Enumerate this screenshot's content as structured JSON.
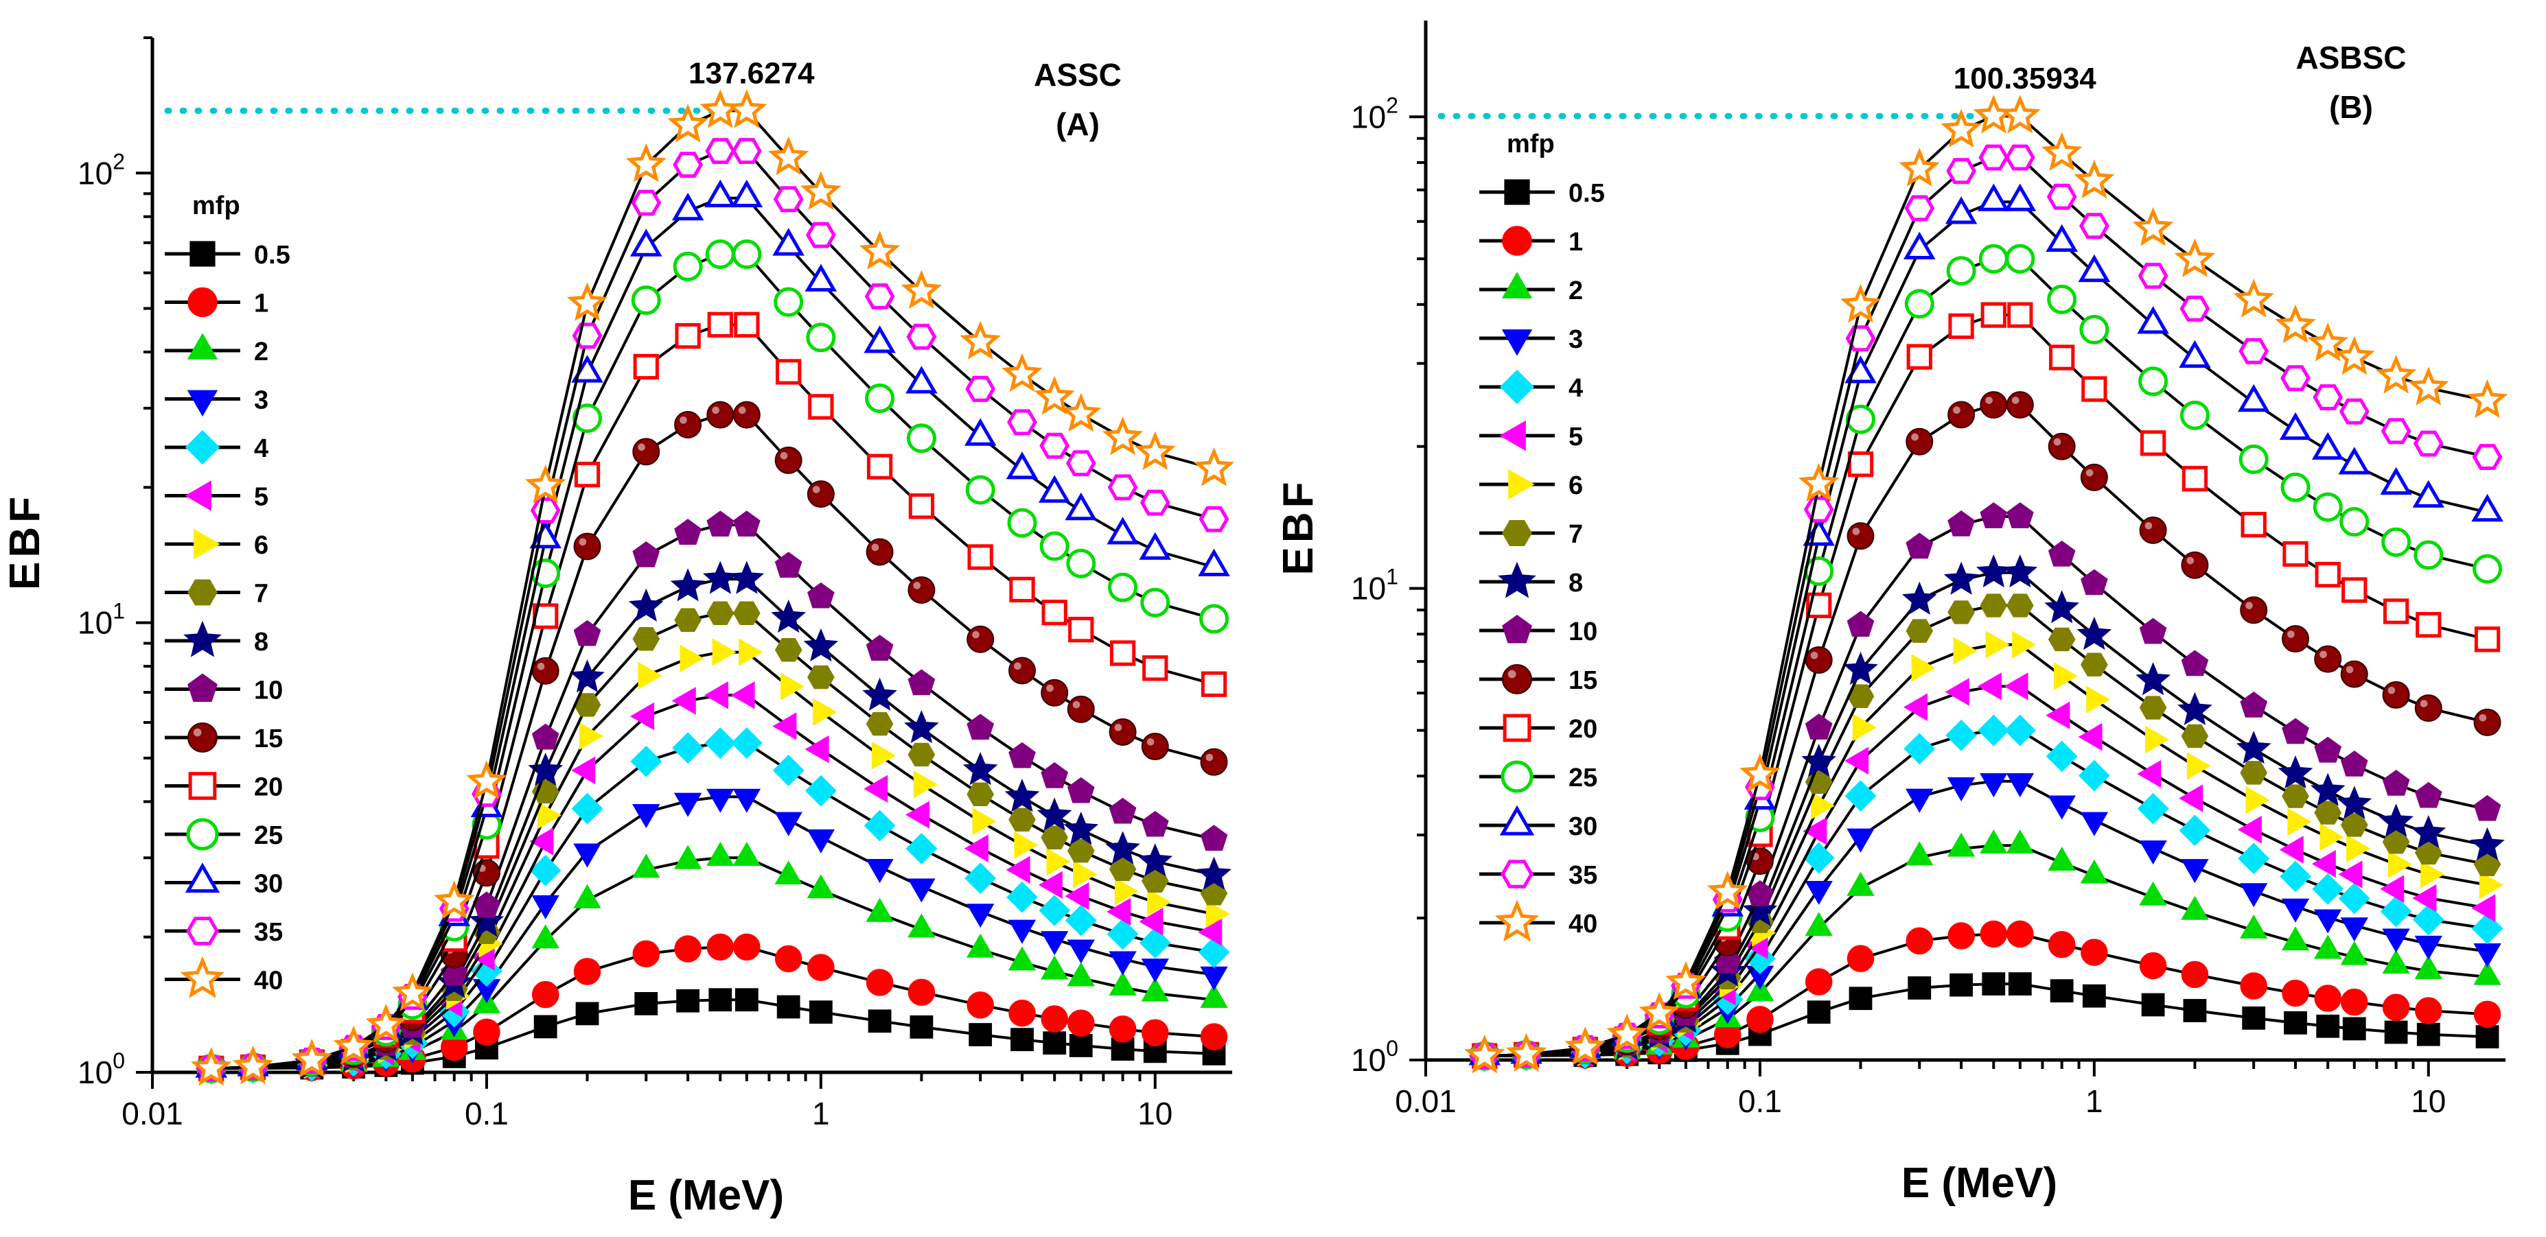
{
  "chart_data": [
    {
      "type": "line",
      "panel_title": "ASSC",
      "panel_letter": "(A)",
      "xlabel": "E (MeV)",
      "ylabel": "EBF",
      "xscale": "log",
      "yscale": "log",
      "xlim": [
        0.01,
        17
      ],
      "ylim": [
        1,
        200
      ],
      "xticks": [
        {
          "value": 0.01,
          "label": "0.01"
        },
        {
          "value": 0.1,
          "label": "0.1"
        },
        {
          "value": 1,
          "label": "1"
        },
        {
          "value": 10,
          "label": "10"
        }
      ],
      "yticks": [
        {
          "value": 1,
          "base": "10",
          "exp": "0"
        },
        {
          "value": 10,
          "base": "10",
          "exp": "1"
        },
        {
          "value": 100,
          "base": "10",
          "exp": "2"
        }
      ],
      "peak_value": 137.6274,
      "peak_label": "137.6274",
      "legend_title": "mfp",
      "series": [
        {
          "name": "0.5",
          "marker": "square",
          "peak": 1.45,
          "tail": 1.1
        },
        {
          "name": "1",
          "marker": "circle",
          "peak": 1.9,
          "tail": 1.2
        },
        {
          "name": "2",
          "marker": "triangle-up",
          "peak": 3.0,
          "tail": 1.45
        },
        {
          "name": "3",
          "marker": "triangle-down",
          "peak": 4.1,
          "tail": 1.65
        },
        {
          "name": "4",
          "marker": "diamond",
          "peak": 5.4,
          "tail": 1.85
        },
        {
          "name": "5",
          "marker": "triangle-left",
          "peak": 6.9,
          "tail": 2.05
        },
        {
          "name": "6",
          "marker": "triangle-right",
          "peak": 8.6,
          "tail": 2.25
        },
        {
          "name": "7",
          "marker": "hexagon",
          "peak": 10.5,
          "tail": 2.5
        },
        {
          "name": "8",
          "marker": "star",
          "peak": 12.5,
          "tail": 2.75
        },
        {
          "name": "10",
          "marker": "pentagon",
          "peak": 16.5,
          "tail": 3.3
        },
        {
          "name": "15",
          "marker": "ball",
          "peak": 29.0,
          "tail": 4.9
        },
        {
          "name": "20",
          "marker": "square-open",
          "peak": 46.0,
          "tail": 7.3
        },
        {
          "name": "25",
          "marker": "circle-open",
          "peak": 66.0,
          "tail": 10.2
        },
        {
          "name": "30",
          "marker": "triangle-open",
          "peak": 88.0,
          "tail": 13.3
        },
        {
          "name": "35",
          "marker": "hexagon-open",
          "peak": 112.0,
          "tail": 17.0
        },
        {
          "name": "40",
          "marker": "star-open",
          "peak": 137.6,
          "tail": 22.0
        }
      ]
    },
    {
      "type": "line",
      "panel_title": "ASBSC",
      "panel_letter": "(B)",
      "xlabel": "E (MeV)",
      "ylabel": "EBF",
      "xscale": "log",
      "yscale": "log",
      "xlim": [
        0.01,
        17
      ],
      "ylim": [
        1,
        160
      ],
      "xticks": [
        {
          "value": 0.01,
          "label": "0.01"
        },
        {
          "value": 0.1,
          "label": "0.1"
        },
        {
          "value": 1,
          "label": "1"
        },
        {
          "value": 10,
          "label": "10"
        }
      ],
      "yticks": [
        {
          "value": 1,
          "base": "10",
          "exp": "0"
        },
        {
          "value": 10,
          "base": "10",
          "exp": "1"
        },
        {
          "value": 100,
          "base": "10",
          "exp": "2"
        }
      ],
      "peak_value": 100.35934,
      "peak_label": "100.35934",
      "legend_title": "mfp",
      "series": [
        {
          "name": "0.5",
          "marker": "square",
          "peak": 1.45,
          "tail": 1.12
        },
        {
          "name": "1",
          "marker": "circle",
          "peak": 1.85,
          "tail": 1.25
        },
        {
          "name": "2",
          "marker": "triangle-up",
          "peak": 2.85,
          "tail": 1.5
        },
        {
          "name": "3",
          "marker": "triangle-down",
          "peak": 3.9,
          "tail": 1.7
        },
        {
          "name": "4",
          "marker": "diamond",
          "peak": 5.0,
          "tail": 1.9
        },
        {
          "name": "5",
          "marker": "triangle-left",
          "peak": 6.2,
          "tail": 2.1
        },
        {
          "name": "6",
          "marker": "triangle-right",
          "peak": 7.6,
          "tail": 2.35
        },
        {
          "name": "7",
          "marker": "hexagon",
          "peak": 9.2,
          "tail": 2.6
        },
        {
          "name": "8",
          "marker": "star",
          "peak": 10.8,
          "tail": 2.85
        },
        {
          "name": "10",
          "marker": "pentagon",
          "peak": 14.2,
          "tail": 3.4
        },
        {
          "name": "15",
          "marker": "ball",
          "peak": 24.5,
          "tail": 5.2
        },
        {
          "name": "20",
          "marker": "square-open",
          "peak": 38.0,
          "tail": 7.8
        },
        {
          "name": "25",
          "marker": "circle-open",
          "peak": 50.0,
          "tail": 11.0
        },
        {
          "name": "30",
          "marker": "triangle-open",
          "peak": 66.0,
          "tail": 14.5
        },
        {
          "name": "35",
          "marker": "hexagon-open",
          "peak": 82.0,
          "tail": 19.0
        },
        {
          "name": "40",
          "marker": "star-open",
          "peak": 100.36,
          "tail": 25.0
        }
      ]
    }
  ],
  "energies": [
    0.015,
    0.02,
    0.03,
    0.04,
    0.05,
    0.06,
    0.08,
    0.1,
    0.15,
    0.2,
    0.3,
    0.4,
    0.5,
    0.6,
    0.8,
    1,
    1.5,
    2,
    3,
    4,
    5,
    6,
    8,
    10,
    15
  ],
  "series_colors": {
    "0.5": "#000000",
    "1": "#ff0000",
    "2": "#00dd00",
    "3": "#0000ff",
    "4": "#00e5ff",
    "5": "#ff00ff",
    "6": "#ffee00",
    "7": "#808000",
    "8": "#000080",
    "10": "#800080",
    "15": "#8b0000",
    "20": "#ff0000",
    "25": "#00dd00",
    "30": "#0000ff",
    "35": "#ff00ff",
    "40": "#ff8c00"
  },
  "peak_line_color": "#00c8d2"
}
